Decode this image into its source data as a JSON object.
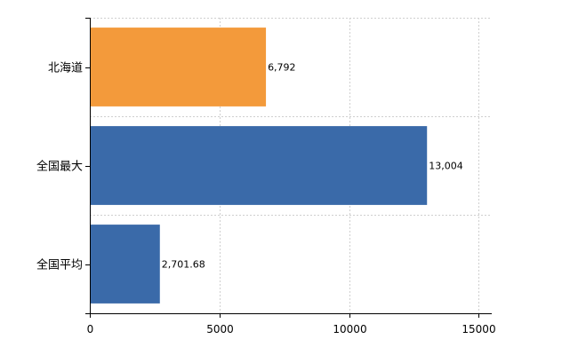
{
  "chart_data": {
    "type": "bar",
    "orientation": "horizontal",
    "title": "",
    "xlabel": "",
    "ylabel": "",
    "categories": [
      "北海道",
      "全国最大",
      "全国平均"
    ],
    "values": [
      6792,
      13004,
      2701.68
    ],
    "value_labels": [
      "6,792",
      "13,004",
      "2,701.68"
    ],
    "colors": [
      "#f39a3b",
      "#3a6aa9",
      "#3a6aa9"
    ],
    "xlim": [
      0,
      15500
    ],
    "xticks": [
      0,
      5000,
      10000,
      15000
    ],
    "xtick_labels": [
      "0",
      "5000",
      "10000",
      "15000"
    ],
    "grid": true,
    "legend": false
  }
}
